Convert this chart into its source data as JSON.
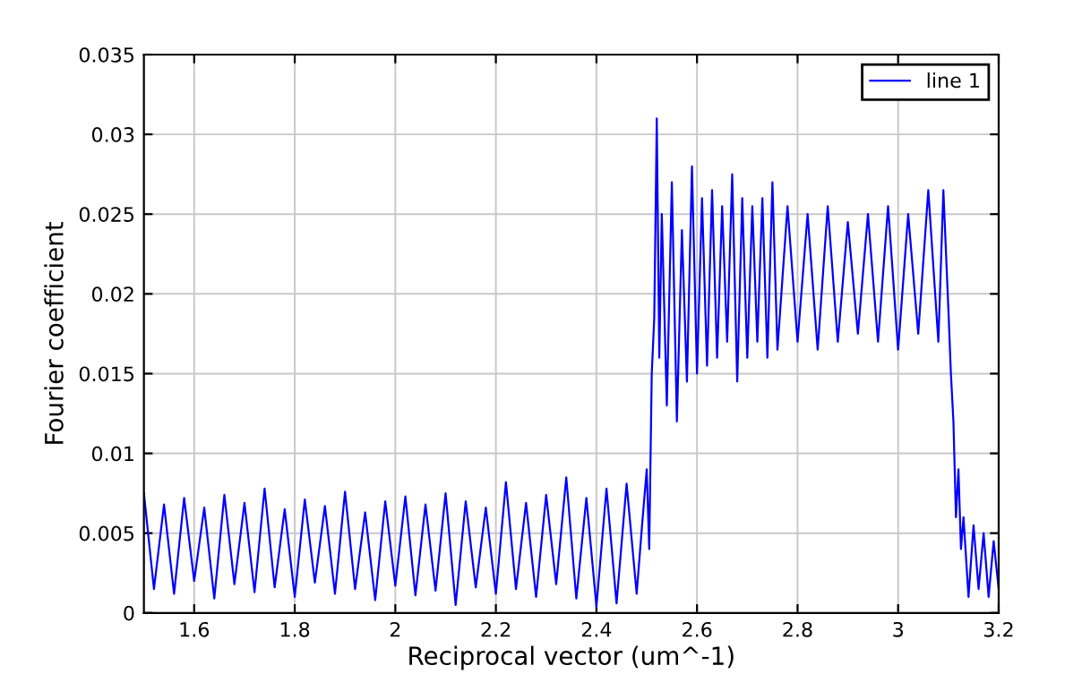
{
  "chart_data": {
    "type": "line",
    "xlabel": "Reciprocal vector (um^-1)",
    "ylabel": "Fourier coefficient",
    "xlim": [
      1.5,
      3.2
    ],
    "xticks": [
      1.6,
      1.8,
      2,
      2.2,
      2.4,
      2.6,
      2.8,
      3,
      3.2
    ],
    "ylim": [
      0,
      0.035
    ],
    "yticks": [
      0,
      0.005,
      0.01,
      0.015,
      0.02,
      0.025,
      0.03,
      0.035
    ],
    "grid": true,
    "legend": "top right",
    "marker": "none",
    "line_style": "solid",
    "series": [
      {
        "name": "line 1",
        "color": "#0000ff",
        "x": [
          1.5,
          1.52,
          1.54,
          1.56,
          1.58,
          1.6,
          1.62,
          1.64,
          1.66,
          1.68,
          1.7,
          1.72,
          1.74,
          1.76,
          1.78,
          1.8,
          1.82,
          1.84,
          1.86,
          1.88,
          1.9,
          1.92,
          1.94,
          1.96,
          1.98,
          2.0,
          2.02,
          2.04,
          2.06,
          2.08,
          2.1,
          2.12,
          2.14,
          2.16,
          2.18,
          2.2,
          2.22,
          2.24,
          2.26,
          2.28,
          2.3,
          2.32,
          2.34,
          2.36,
          2.38,
          2.4,
          2.42,
          2.44,
          2.46,
          2.48,
          2.49,
          2.5,
          2.505,
          2.51,
          2.515,
          2.52,
          2.525,
          2.53,
          2.54,
          2.55,
          2.56,
          2.57,
          2.58,
          2.59,
          2.6,
          2.61,
          2.62,
          2.63,
          2.64,
          2.65,
          2.66,
          2.67,
          2.68,
          2.69,
          2.7,
          2.71,
          2.72,
          2.73,
          2.74,
          2.75,
          2.76,
          2.78,
          2.8,
          2.82,
          2.84,
          2.86,
          2.88,
          2.9,
          2.92,
          2.94,
          2.96,
          2.98,
          3.0,
          3.02,
          3.04,
          3.06,
          3.08,
          3.09,
          3.1,
          3.105,
          3.11,
          3.115,
          3.12,
          3.125,
          3.13,
          3.14,
          3.15,
          3.16,
          3.17,
          3.18,
          3.19,
          3.2
        ],
        "values": [
          0.0075,
          0.0015,
          0.0068,
          0.0012,
          0.0072,
          0.002,
          0.0066,
          0.0009,
          0.0074,
          0.0018,
          0.0069,
          0.0013,
          0.0078,
          0.0016,
          0.0065,
          0.001,
          0.0071,
          0.0019,
          0.0067,
          0.0012,
          0.0076,
          0.0015,
          0.0063,
          0.0008,
          0.007,
          0.0017,
          0.0073,
          0.0011,
          0.0068,
          0.0014,
          0.0075,
          0.0005,
          0.007,
          0.0016,
          0.0066,
          0.0012,
          0.0082,
          0.0015,
          0.0069,
          0.001,
          0.0074,
          0.0018,
          0.0085,
          0.0009,
          0.0072,
          0.0004,
          0.0078,
          0.0006,
          0.0081,
          0.0012,
          0.0052,
          0.009,
          0.004,
          0.015,
          0.0185,
          0.031,
          0.016,
          0.025,
          0.013,
          0.027,
          0.012,
          0.024,
          0.0145,
          0.028,
          0.015,
          0.026,
          0.0155,
          0.0265,
          0.016,
          0.0255,
          0.017,
          0.0275,
          0.0145,
          0.026,
          0.016,
          0.0255,
          0.017,
          0.026,
          0.016,
          0.027,
          0.0165,
          0.0255,
          0.017,
          0.025,
          0.0165,
          0.0255,
          0.017,
          0.0245,
          0.0175,
          0.025,
          0.017,
          0.0255,
          0.0165,
          0.025,
          0.0175,
          0.0265,
          0.017,
          0.0265,
          0.019,
          0.015,
          0.012,
          0.006,
          0.009,
          0.004,
          0.006,
          0.001,
          0.0055,
          0.0015,
          0.005,
          0.001,
          0.0045,
          0.0015
        ]
      }
    ]
  }
}
